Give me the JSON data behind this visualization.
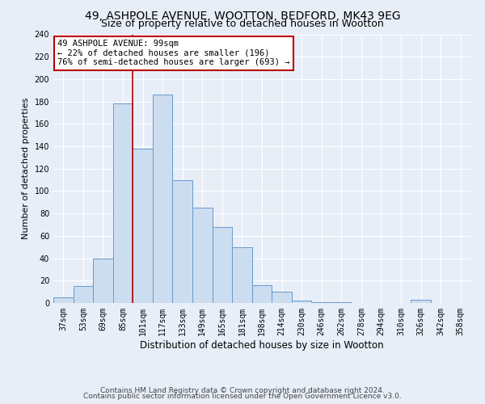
{
  "title1": "49, ASHPOLE AVENUE, WOOTTON, BEDFORD, MK43 9EG",
  "title2": "Size of property relative to detached houses in Wootton",
  "xlabel": "Distribution of detached houses by size in Wootton",
  "ylabel": "Number of detached properties",
  "categories": [
    "37sqm",
    "53sqm",
    "69sqm",
    "85sqm",
    "101sqm",
    "117sqm",
    "133sqm",
    "149sqm",
    "165sqm",
    "181sqm",
    "198sqm",
    "214sqm",
    "230sqm",
    "246sqm",
    "262sqm",
    "278sqm",
    "294sqm",
    "310sqm",
    "326sqm",
    "342sqm",
    "358sqm"
  ],
  "values": [
    5,
    15,
    40,
    178,
    138,
    186,
    110,
    85,
    68,
    50,
    16,
    10,
    2,
    1,
    1,
    0,
    0,
    0,
    3,
    0,
    0
  ],
  "bar_color": "#ccddf0",
  "bar_edge_color": "#6699cc",
  "vline_x_index": 4,
  "vline_color": "#bb0000",
  "annotation_text": "49 ASHPOLE AVENUE: 99sqm\n← 22% of detached houses are smaller (196)\n76% of semi-detached houses are larger (693) →",
  "annotation_box_color": "#ffffff",
  "annotation_box_edge_color": "#bb0000",
  "ylim": [
    0,
    240
  ],
  "yticks": [
    0,
    20,
    40,
    60,
    80,
    100,
    120,
    140,
    160,
    180,
    200,
    220,
    240
  ],
  "footnote1": "Contains HM Land Registry data © Crown copyright and database right 2024.",
  "footnote2": "Contains public sector information licensed under the Open Government Licence v3.0.",
  "bg_color": "#e8eef8",
  "grid_color": "#ffffff",
  "title1_fontsize": 10,
  "title2_fontsize": 9,
  "xlabel_fontsize": 8.5,
  "ylabel_fontsize": 8,
  "tick_fontsize": 7,
  "annot_fontsize": 7.5,
  "footnote_fontsize": 6.5
}
